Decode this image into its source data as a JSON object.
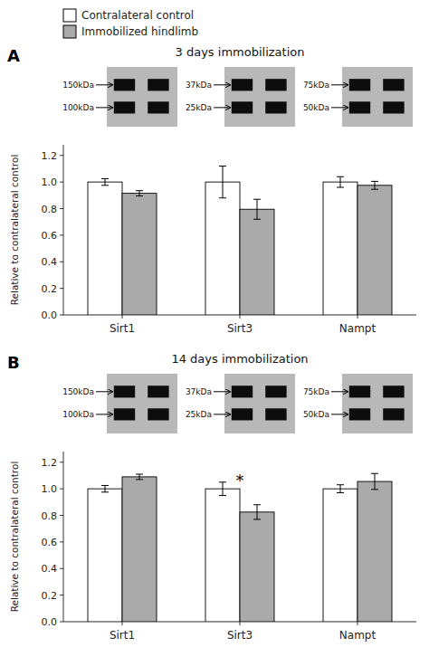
{
  "chart_data": [
    {
      "type": "bar",
      "title": "3 days immobilization",
      "legend": "top-left",
      "ylabel": "Relative to contralateral control",
      "categories": [
        "Sirt1",
        "Sirt3",
        "Nampt"
      ],
      "series": [
        {
          "name": "Contralateral control",
          "color": "white",
          "values": [
            1.0,
            1.0,
            1.0
          ],
          "errors": [
            0.025,
            0.12,
            0.04
          ]
        },
        {
          "name": "Immobilized hindlimb",
          "color": "#aaaaaa",
          "values": [
            0.915,
            0.795,
            0.975
          ],
          "errors": [
            0.02,
            0.075,
            0.03
          ]
        }
      ],
      "ylim": [
        0.0,
        1.28
      ],
      "yticks": [
        {
          "value": 0,
          "label": "0.0"
        },
        0.2,
        0.4,
        0.6,
        0.8,
        {
          "value": 1,
          "label": "1.0"
        },
        1.2
      ],
      "annotations": [
        {
          "kind": "panel",
          "text": "A"
        },
        {
          "kind": "blot",
          "category": "Sirt1",
          "text": "150kDa"
        },
        {
          "kind": "blot",
          "category": "Sirt1",
          "text": "100kDa"
        },
        {
          "kind": "blot",
          "category": "Sirt3",
          "text": "37kDa"
        },
        {
          "kind": "blot",
          "category": "Sirt3",
          "text": "25kDa"
        },
        {
          "kind": "blot",
          "category": "Nampt",
          "text": "75kDa"
        },
        {
          "kind": "blot",
          "category": "Nampt",
          "text": "50kDa"
        }
      ]
    },
    {
      "type": "bar",
      "title": "14 days immobilization",
      "ylabel": "Relative to contralateral control",
      "categories": [
        "Sirt1",
        "Sirt3",
        "Nampt"
      ],
      "series": [
        {
          "name": "Contralateral control",
          "color": "white",
          "values": [
            1.0,
            1.0,
            1.0
          ],
          "errors": [
            0.025,
            0.05,
            0.03
          ]
        },
        {
          "name": "Immobilized hindlimb",
          "color": "#aaaaaa",
          "values": [
            1.09,
            0.825,
            1.055
          ],
          "errors": [
            0.02,
            0.055,
            0.06
          ]
        }
      ],
      "ylim": [
        0.0,
        1.28
      ],
      "yticks": [
        {
          "value": 0,
          "label": "0.0"
        },
        0.2,
        0.4,
        0.6,
        0.8,
        {
          "value": 1,
          "label": "1.0"
        },
        1.2
      ],
      "annotations": [
        {
          "kind": "panel",
          "text": "B"
        },
        {
          "kind": "blot",
          "category": "Sirt1",
          "text": "150kDa"
        },
        {
          "kind": "blot",
          "category": "Sirt1",
          "text": "100kDa"
        },
        {
          "kind": "blot",
          "category": "Sirt3",
          "text": "37kDa"
        },
        {
          "kind": "blot",
          "category": "Sirt3",
          "text": "25kDa"
        },
        {
          "kind": "blot",
          "category": "Nampt",
          "text": "75kDa"
        },
        {
          "kind": "blot",
          "category": "Nampt",
          "text": "50kDa"
        },
        {
          "kind": "significance",
          "category": "Sirt3",
          "text": "*"
        }
      ]
    }
  ]
}
